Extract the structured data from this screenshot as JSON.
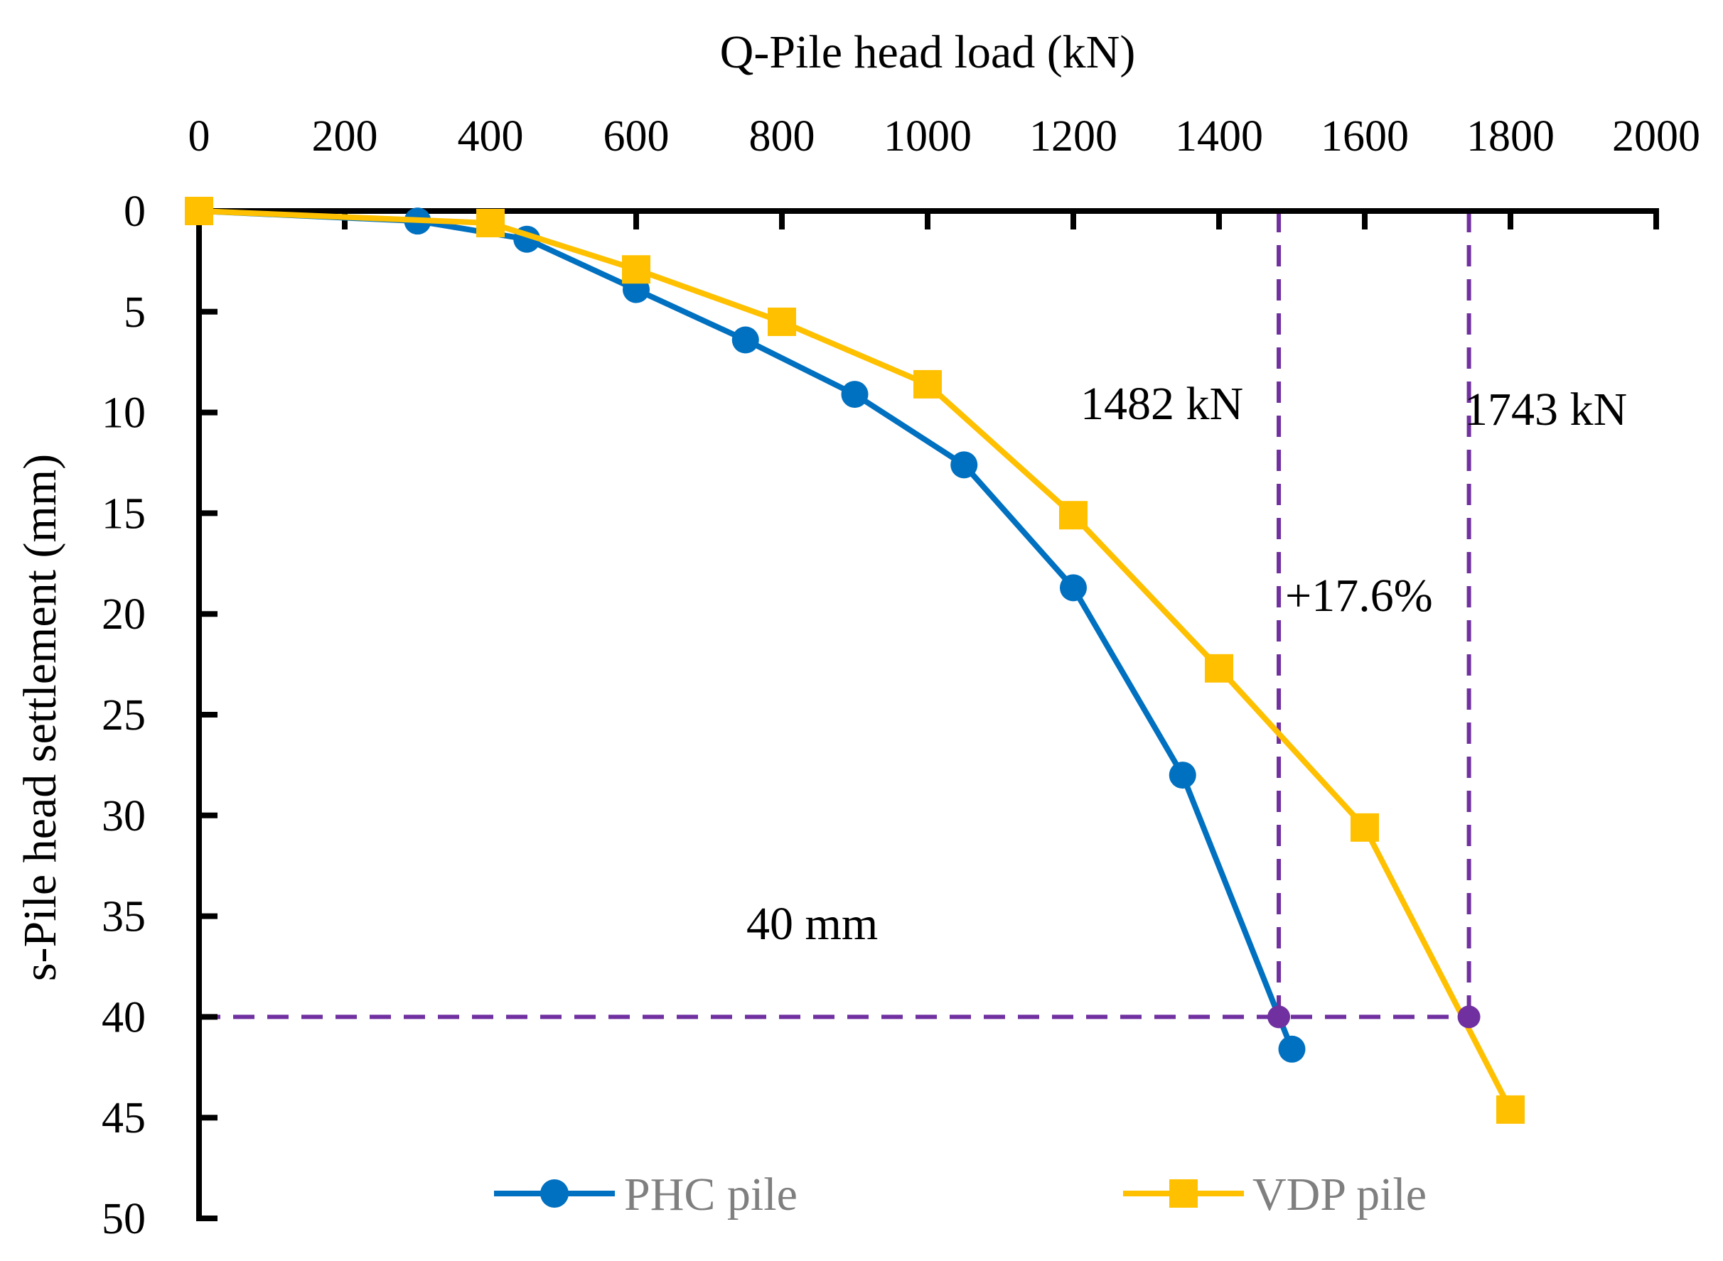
{
  "chart_data": {
    "type": "line",
    "xlabel": "Q-Pile head load (kN)",
    "ylabel": "s-Pile head settlement (mm)",
    "xlim": [
      0,
      2000
    ],
    "ylim": [
      0,
      50
    ],
    "y_inverted": true,
    "x_axis_position": "top",
    "x_ticks": [
      "0",
      "200",
      "400",
      "600",
      "800",
      "1000",
      "1200",
      "1400",
      "1600",
      "1800",
      "2000"
    ],
    "y_ticks": [
      "0",
      "5",
      "10",
      "15",
      "20",
      "25",
      "30",
      "35",
      "40",
      "45",
      "50"
    ],
    "grid": false,
    "legend_position": "bottom",
    "series": [
      {
        "name": "PHC pile",
        "color": "#0070C0",
        "marker": "circle",
        "x": [
          0,
          300,
          450,
          600,
          750,
          900,
          1050,
          1200,
          1350,
          1500
        ],
        "y": [
          0,
          0.5,
          1.4,
          3.9,
          6.4,
          9.1,
          12.6,
          18.7,
          28.0,
          41.6
        ]
      },
      {
        "name": "VDP pile",
        "color": "#FFC000",
        "marker": "square",
        "x": [
          0,
          400,
          600,
          800,
          1000,
          1200,
          1400,
          1600,
          1800
        ],
        "y": [
          0,
          0.6,
          2.9,
          5.5,
          8.6,
          15.1,
          22.7,
          30.6,
          44.6
        ]
      }
    ],
    "reference_lines": {
      "color": "#7030A0",
      "settlement_mm": 40,
      "load_values_kN": [
        1482,
        1743
      ]
    },
    "annotations": {
      "load_phc": "1482 kN",
      "load_vdp": "1743 kN",
      "increase": "+17.6%",
      "increase_color": "#FF0000",
      "settlement": "40 mm"
    }
  }
}
